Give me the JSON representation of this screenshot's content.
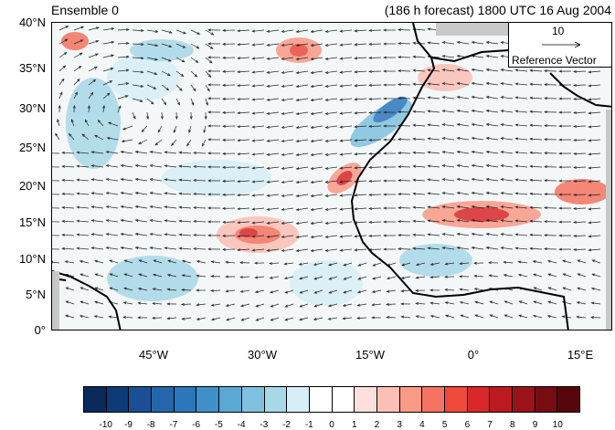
{
  "title_left": "Ensemble 0",
  "title_right": "(186 h forecast) 1800 UTC 16 Aug 2004",
  "lat_labels": [
    "40°N",
    "35°N",
    "30°N",
    "25°N",
    "20°N",
    "15°N",
    "10°N",
    "5°N",
    "0°"
  ],
  "lon_labels": [
    "45°W",
    "30°W",
    "15°W",
    "0°",
    "15°E"
  ],
  "reference_vector": {
    "magnitude": "10",
    "label": "Reference Vector"
  },
  "colorbar": {
    "colors": [
      "#0a2a5a",
      "#0d3b7a",
      "#1a4f96",
      "#2466aa",
      "#2c77bb",
      "#3e91c8",
      "#5aa8d4",
      "#80c1df",
      "#a8d8e8",
      "#d6eef6",
      "#ffffff",
      "#ffffff",
      "#fde0dd",
      "#fbbfb5",
      "#f99a87",
      "#f57360",
      "#ef4a3a",
      "#d8282a",
      "#bb1a20",
      "#9a1319",
      "#780c13",
      "#56060b"
    ],
    "tick_labels": [
      "-10",
      "-9",
      "-8",
      "-7",
      "-6",
      "-5",
      "-4",
      "-3",
      "-2",
      "-1",
      "0",
      "1",
      "2",
      "3",
      "4",
      "5",
      "6",
      "7",
      "8",
      "9",
      "10"
    ]
  }
}
